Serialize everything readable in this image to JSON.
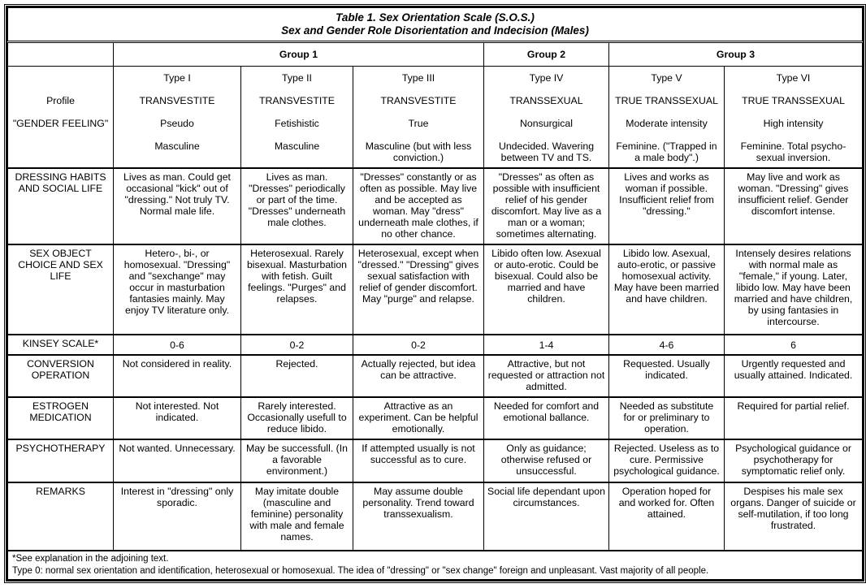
{
  "title": {
    "line1": "Table 1. Sex Orientation Scale (S.O.S.)",
    "line2": "Sex and Gender Role Disorientation and Indecision (Males)"
  },
  "groups": [
    "Group 1",
    "Group 2",
    "Group 3"
  ],
  "header_labels": [
    "",
    "Profile",
    "\"GENDER FEELING\"",
    ""
  ],
  "types": [
    {
      "type": "Type I",
      "profile": "TRANSVESTITE",
      "feeling": "Pseudo",
      "gender": "Masculine"
    },
    {
      "type": "Type II",
      "profile": "TRANSVESTITE",
      "feeling": "Fetishistic",
      "gender": "Masculine"
    },
    {
      "type": "Type III",
      "profile": "TRANSVESTITE",
      "feeling": "True",
      "gender": "Masculine (but with less conviction.)"
    },
    {
      "type": "Type IV",
      "profile": "TRANSSEXUAL",
      "feeling": "Nonsurgical",
      "gender": "Undecided. Wavering between TV and TS."
    },
    {
      "type": "Type V",
      "profile": "TRUE TRANSSEXUAL",
      "feeling": "Moderate intensity",
      "gender": "Feminine. (\"Trapped in a male body\".)"
    },
    {
      "type": "Type VI",
      "profile": "TRUE TRANSSEXUAL",
      "feeling": "High intensity",
      "gender": "Feminine. Total psycho-sexual inversion."
    }
  ],
  "rows": [
    {
      "label": "DRESSING HABITS AND SOCIAL LIFE",
      "cells": [
        "Lives as man. Could get occasional \"kick\" out of \"dressing.\" Not truly TV. Normal male life.",
        "Lives as man. \"Dresses\" periodically or part of the time. \"Dresses\" underneath male clothes.",
        "\"Dresses\" constantly or as often as possible. May live and be accepted as woman. May \"dress\" underneath male clothes, if no other chance.",
        "\"Dresses\" as often as possible with insufficient relief of his gender discomfort. May live as a man or a woman; sometimes alternating.",
        "Lives and works as woman if possible. Insufficient relief from \"dressing.\"",
        "May live and work as woman. \"Dressing\" gives insufficient relief. Gender discomfort intense."
      ]
    },
    {
      "label": "SEX OBJECT CHOICE AND SEX LIFE",
      "cells": [
        "Hetero-, bi-, or homosexual. \"Dressing\" and \"sexchange\" may occur in masturbation fantasies mainly. May enjoy TV literature only.",
        "Heterosexual. Rarely bisexual. Masturbation with fetish. Guilt feelings. \"Purges\" and relapses.",
        "Heterosexual, except when \"dressed.\" \"Dressing\" gives sexual satisfaction with relief of gender discomfort. May \"purge\" and relapse.",
        "Libido often low. Asexual or auto-erotic. Could be bisexual. Could also be married and have children.",
        "Libido low. Asexual, auto-erotic, or passive homosexual activity. May have been married and have children.",
        "Intensely desires relations with normal male as \"female,\" if young. Later, libido low. May have been married and have children, by using fantasies in intercourse."
      ]
    },
    {
      "label": "KINSEY SCALE*",
      "cells": [
        "0-6",
        "0-2",
        "0-2",
        "1-4",
        "4-6",
        "6"
      ]
    },
    {
      "label": "CONVERSION OPERATION",
      "cells": [
        "Not considered in reality.",
        "Rejected.",
        "Actually rejected, but idea can be attractive.",
        "Attractive, but not requested or attraction not admitted.",
        "Requested. Usually indicated.",
        "Urgently requested and usually attained. Indicated."
      ]
    },
    {
      "label": "ESTROGEN MEDICATION",
      "cells": [
        "Not interested. Not indicated.",
        "Rarely interested. Occasionally usefull to reduce libido.",
        "Attractive as an experiment. Can be helpful emotionally.",
        "Needed for comfort and emotional ballance.",
        "Needed as substitute for or preliminary to operation.",
        "Required for partial relief."
      ]
    },
    {
      "label": "PSYCHOTHERAPY",
      "cells": [
        "Not wanted. Unnecessary.",
        "May be successfull. (In a favorable environment.)",
        "If attempted usually is not successful as to cure.",
        "Only as guidance; otherwise refused or unsuccessful.",
        "Rejected. Useless as to cure. Permissive psychological guidance.",
        "Psychological guidance or psychotherapy for symptomatic relief only."
      ]
    },
    {
      "label": "REMARKS",
      "cells": [
        "Interest in \"dressing\" only sporadic.",
        "May imitate double (masculine and feminine) personality with male and female names.",
        "May assume double personality. Trend toward transsexualism.",
        "Social life dependant upon circumstances.",
        "Operation hoped for and worked for. Often attained.",
        "Despises his male sex organs. Danger of suicide or self-mutilation, if too long frustrated."
      ]
    }
  ],
  "footnotes": [
    "*See explanation in the adjoining text.",
    "Type 0: normal sex orientation and identification, heterosexual or homosexual. The idea of \"dressing\" or \"sex change\" foreign and unpleasant. Vast majority of all people."
  ]
}
